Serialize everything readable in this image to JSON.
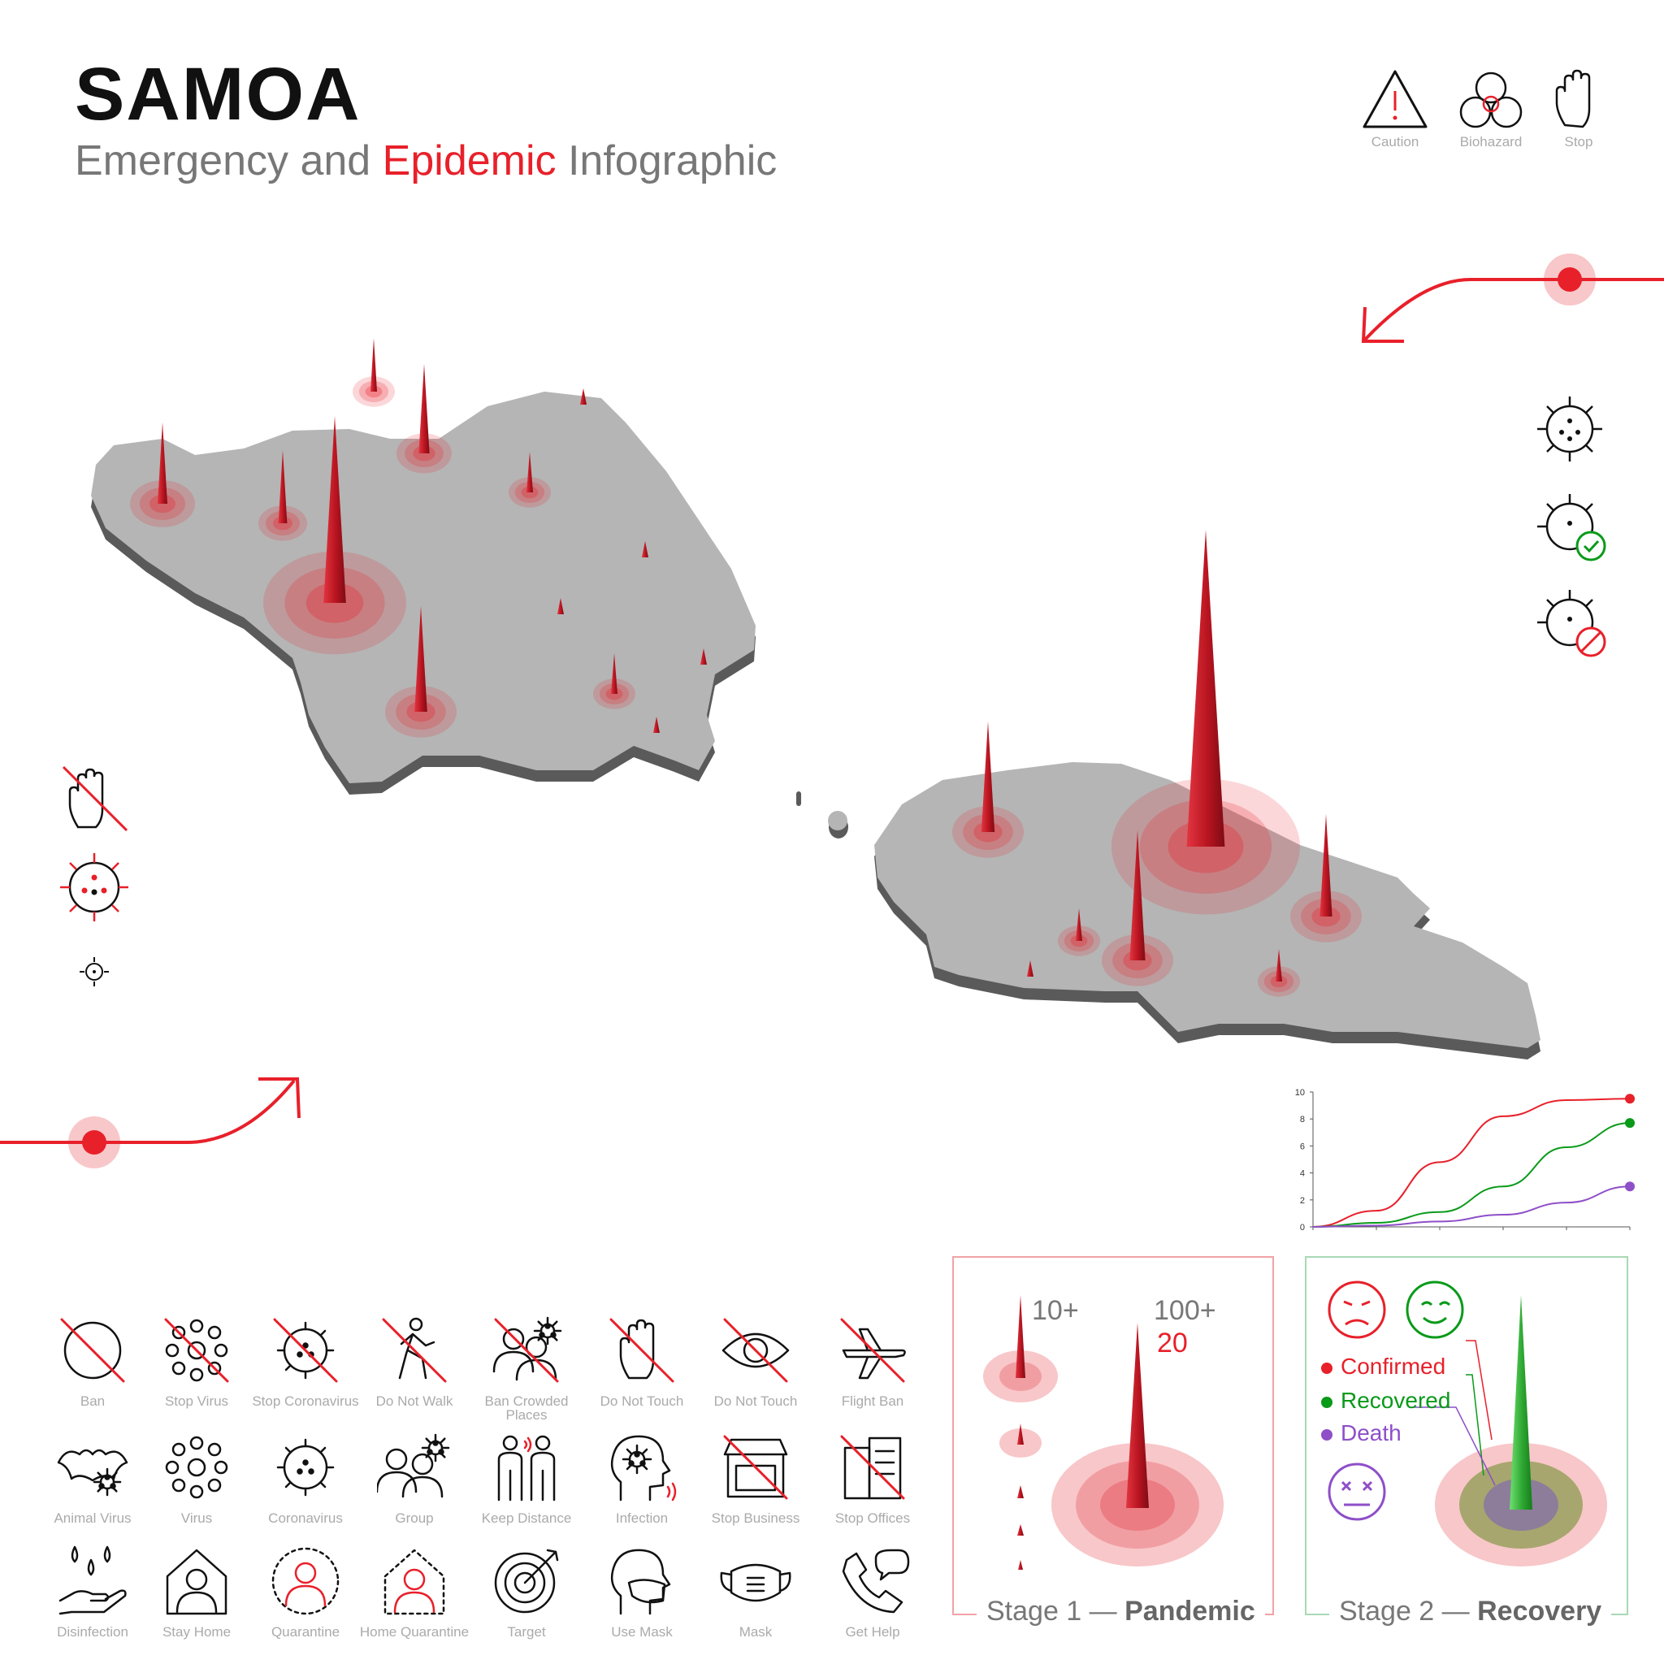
{
  "header": {
    "title": "SAMOA",
    "subtitle_part1": "Emergency and",
    "subtitle_highlight": "Epidemic",
    "subtitle_part2": "Infographic"
  },
  "top_icons": [
    {
      "icon": "caution-icon",
      "label": "Caution"
    },
    {
      "icon": "biohazard-icon",
      "label": "Biohazard"
    },
    {
      "icon": "stop-hand-icon",
      "label": "Stop"
    }
  ],
  "icon_grid": [
    {
      "icon": "ban-icon",
      "label": "Ban"
    },
    {
      "icon": "stop-virus-icon",
      "label": "Stop Virus"
    },
    {
      "icon": "stop-coronavirus-icon",
      "label": "Stop Coronavirus"
    },
    {
      "icon": "do-not-walk-icon",
      "label": "Do Not Walk"
    },
    {
      "icon": "ban-crowded-places-icon",
      "label": "Ban Crowded Places"
    },
    {
      "icon": "do-not-touch-hand-icon",
      "label": "Do Not Touch"
    },
    {
      "icon": "do-not-touch-eye-icon",
      "label": "Do Not Touch"
    },
    {
      "icon": "flight-ban-icon",
      "label": "Flight Ban"
    },
    {
      "icon": "animal-virus-icon",
      "label": "Animal Virus"
    },
    {
      "icon": "virus-icon",
      "label": "Virus"
    },
    {
      "icon": "coronavirus-icon",
      "label": "Coronavirus"
    },
    {
      "icon": "group-icon",
      "label": "Group"
    },
    {
      "icon": "keep-distance-icon",
      "label": "Keep Distance"
    },
    {
      "icon": "infection-icon",
      "label": "Infection"
    },
    {
      "icon": "stop-business-icon",
      "label": "Stop Business"
    },
    {
      "icon": "stop-offices-icon",
      "label": "Stop Offices"
    },
    {
      "icon": "disinfection-icon",
      "label": "Disinfection"
    },
    {
      "icon": "stay-home-icon",
      "label": "Stay Home"
    },
    {
      "icon": "quarantine-icon",
      "label": "Quarantine"
    },
    {
      "icon": "home-quarantine-icon",
      "label": "Home Quarantine"
    },
    {
      "icon": "target-icon",
      "label": "Target"
    },
    {
      "icon": "use-mask-icon",
      "label": "Use Mask"
    },
    {
      "icon": "mask-icon",
      "label": "Mask"
    },
    {
      "icon": "get-help-icon",
      "label": "Get Help"
    }
  ],
  "stage1": {
    "caption_prefix": "Stage 1 —",
    "caption_bold": "Pandemic",
    "label_small": "10+",
    "label_large": "100+",
    "value_large": "20"
  },
  "stage2": {
    "caption_prefix": "Stage 2 —",
    "caption_bold": "Recovery",
    "legend": [
      {
        "label": "Confirmed",
        "color": "#e8202a"
      },
      {
        "label": "Recovered",
        "color": "#0a9a1a"
      },
      {
        "label": "Death",
        "color": "#8e4fc8"
      }
    ]
  },
  "chart_data": {
    "type": "line",
    "y_ticks": [
      "0",
      "2",
      "4",
      "6",
      "8",
      "10"
    ],
    "ylim": [
      0,
      10
    ],
    "x": [
      0,
      1,
      2,
      3,
      4,
      5
    ],
    "series": [
      {
        "color": "#e8202a",
        "values": [
          0,
          1.2,
          4.8,
          8.2,
          9.4,
          9.5
        ]
      },
      {
        "color": "#0a9a1a",
        "values": [
          0,
          0.3,
          1.1,
          3.0,
          5.9,
          7.7
        ]
      },
      {
        "color": "#8e4fc8",
        "values": [
          0,
          0.1,
          0.4,
          0.9,
          1.8,
          3.0
        ]
      }
    ],
    "grid": false
  },
  "colors": {
    "accent": "#e8202a",
    "land": "#b5b5b5",
    "land_side": "#5a5a5a",
    "recovery": "#0a9a1a",
    "death": "#8e4fc8"
  }
}
